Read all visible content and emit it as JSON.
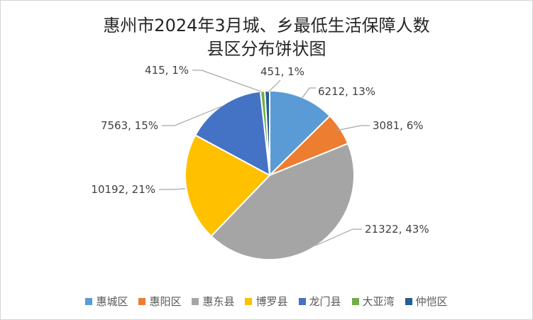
{
  "chart_data": {
    "type": "pie",
    "title_line1": "惠州市2024年3月城、乡最低生活保障人数",
    "title_line2": "县区分布饼状图",
    "title_color": "#262626",
    "label_color": "#404040",
    "leader_line_color": "#A6A6A6",
    "legend_text_color": "#595959",
    "legend_position": "bottom",
    "start_angle": "top",
    "direction": "clockwise",
    "slices": [
      {
        "label": "惠城区",
        "value": 6212,
        "percent": "13%",
        "data_label": "6212, 13%",
        "color": "#5B9BD5"
      },
      {
        "label": "惠阳区",
        "value": 3081,
        "percent": "6%",
        "data_label": "3081, 6%",
        "color": "#ED7D31"
      },
      {
        "label": "惠东县",
        "value": 21322,
        "percent": "43%",
        "data_label": "21322, 43%",
        "color": "#A5A5A5"
      },
      {
        "label": "博罗县",
        "value": 10192,
        "percent": "21%",
        "data_label": "10192, 21%",
        "color": "#FFC000"
      },
      {
        "label": "龙门县",
        "value": 7563,
        "percent": "15%",
        "data_label": "7563, 15%",
        "color": "#4472C4"
      },
      {
        "label": "大亚湾",
        "value": 415,
        "percent": "1%",
        "data_label": "415, 1%",
        "color": "#70AD47"
      },
      {
        "label": "仲恺区",
        "value": 451,
        "percent": "1%",
        "data_label": "451, 1%",
        "color": "#255E91"
      }
    ]
  }
}
